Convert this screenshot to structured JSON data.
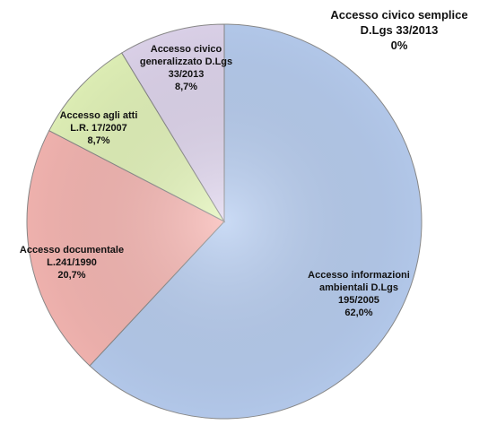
{
  "chart_data": {
    "type": "pie",
    "categories": [
      "Accesso informazioni ambientali D.Lgs 195/2005",
      "Accesso documentale L.241/1990",
      "Accesso agli atti L.R. 17/2007",
      "Accesso civico generalizzato D.Lgs 33/2013",
      "Accesso civico semplice D.Lgs 33/2013"
    ],
    "values": [
      62.0,
      20.7,
      8.7,
      8.7,
      0
    ],
    "value_labels": [
      "62,0%",
      "20,7%",
      "8,7%",
      "8,7%",
      "0%"
    ],
    "colors": [
      "#b9cff2",
      "#f8b8b4",
      "#e5f6bb",
      "#e2d8f0",
      "#e8e8e8"
    ]
  }
}
